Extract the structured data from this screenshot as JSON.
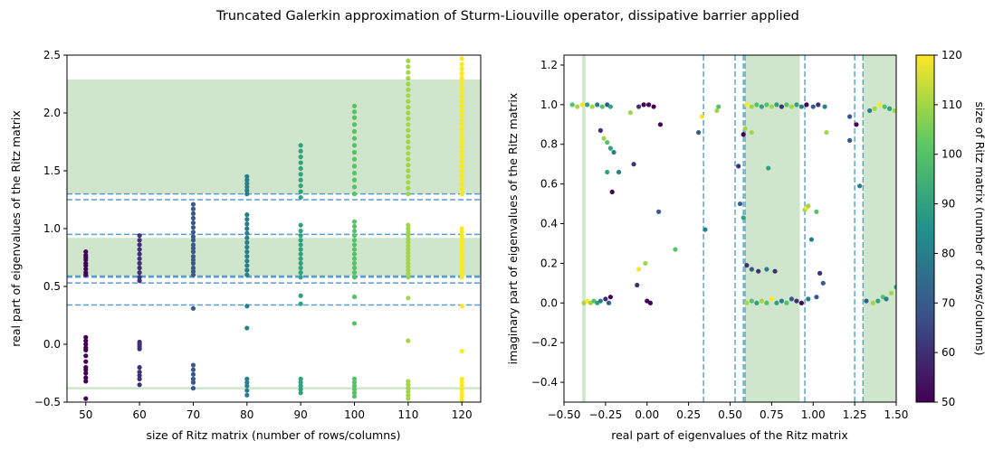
{
  "figure_title": "Truncated Galerkin approximation of Sturm-Liouville operator, dissipative barrier applied",
  "colors": {
    "band": "#cfe6cc",
    "dashed_left": "#5b9bd0",
    "dashed_right": "#5ba8c8",
    "colormap": [
      "#440154",
      "#3b528b",
      "#21918c",
      "#5ec962",
      "#fde725"
    ]
  },
  "chart_data": [
    {
      "type": "scatter",
      "xlabel": "size of Ritz matrix (number of rows/columns)",
      "ylabel": "real part of eigenvalues of the Ritz matrix",
      "xlim": [
        46.5,
        123.5
      ],
      "ylim": [
        -0.5,
        2.5
      ],
      "xticks": [
        50,
        60,
        70,
        80,
        90,
        100,
        110,
        120
      ],
      "yticks": [
        -0.5,
        0.0,
        0.5,
        1.0,
        1.5,
        2.0,
        2.5
      ],
      "xtick_labels": [
        "50",
        "60",
        "70",
        "80",
        "90",
        "100",
        "110",
        "120"
      ],
      "ytick_labels": [
        "−0.5",
        "0.0",
        "0.5",
        "1.0",
        "1.5",
        "2.0",
        "2.5"
      ],
      "shaded_bands_y": [
        [
          -0.39,
          -0.37
        ],
        [
          0.59,
          0.92
        ],
        [
          1.3,
          2.29
        ]
      ],
      "dashed_lines_y": [
        0.34,
        0.53,
        0.58,
        0.59,
        0.95,
        1.25,
        1.3
      ],
      "color_by": "size of Ritz matrix",
      "series": [
        {
          "x": 50,
          "values": [
            -0.47,
            -0.32,
            -0.29,
            -0.25,
            -0.22,
            -0.2,
            -0.15,
            -0.1,
            -0.05,
            -0.03,
            0.0,
            0.03,
            0.06,
            0.6,
            0.62,
            0.65,
            0.68,
            0.7,
            0.73,
            0.75,
            0.77,
            0.8
          ]
        },
        {
          "x": 60,
          "values": [
            -0.35,
            -0.3,
            -0.27,
            -0.24,
            -0.2,
            -0.04,
            -0.02,
            0.0,
            0.02,
            0.55,
            0.58,
            0.62,
            0.66,
            0.7,
            0.74,
            0.78,
            0.82,
            0.86,
            0.9,
            0.94
          ]
        },
        {
          "x": 70,
          "values": [
            -0.38,
            -0.33,
            -0.3,
            -0.26,
            -0.22,
            -0.18,
            0.31,
            0.6,
            0.63,
            0.66,
            0.7,
            0.73,
            0.76,
            0.8,
            0.83,
            0.86,
            0.9,
            0.93,
            0.97,
            1.01,
            1.05,
            1.09,
            1.13,
            1.17,
            1.21
          ]
        },
        {
          "x": 80,
          "values": [
            -0.44,
            -0.4,
            -0.36,
            -0.33,
            -0.3,
            0.14,
            0.33,
            0.6,
            0.64,
            0.68,
            0.72,
            0.76,
            0.8,
            0.84,
            0.88,
            0.92,
            0.96,
            1.0,
            1.04,
            1.08,
            1.12,
            1.3,
            1.33,
            1.36,
            1.39,
            1.42,
            1.45
          ]
        },
        {
          "x": 90,
          "values": [
            -0.42,
            -0.39,
            -0.36,
            -0.33,
            -0.3,
            0.35,
            0.42,
            0.58,
            0.62,
            0.66,
            0.7,
            0.74,
            0.78,
            0.82,
            0.86,
            0.9,
            0.94,
            0.98,
            1.03,
            1.27,
            1.32,
            1.37,
            1.42,
            1.47,
            1.52,
            1.57,
            1.62,
            1.67,
            1.72
          ]
        },
        {
          "x": 100,
          "values": [
            -0.45,
            -0.42,
            -0.39,
            -0.36,
            -0.33,
            -0.3,
            0.18,
            0.41,
            0.58,
            0.62,
            0.66,
            0.7,
            0.74,
            0.78,
            0.82,
            0.86,
            0.9,
            0.94,
            0.98,
            1.02,
            1.06,
            1.3,
            1.36,
            1.42,
            1.48,
            1.54,
            1.6,
            1.66,
            1.72,
            1.78,
            1.84,
            1.9,
            1.96,
            2.01,
            2.06
          ]
        },
        {
          "x": 110,
          "values": [
            -0.47,
            -0.44,
            -0.41,
            -0.38,
            -0.35,
            -0.32,
            0.03,
            0.4,
            0.58,
            0.61,
            0.64,
            0.67,
            0.7,
            0.73,
            0.76,
            0.79,
            0.82,
            0.85,
            0.88,
            0.91,
            0.94,
            0.97,
            1.0,
            1.03,
            1.3,
            1.35,
            1.4,
            1.45,
            1.5,
            1.55,
            1.6,
            1.65,
            1.7,
            1.75,
            1.8,
            1.85,
            1.9,
            1.95,
            2.0,
            2.05,
            2.1,
            2.15,
            2.2,
            2.25,
            2.3,
            2.35,
            2.4,
            2.45
          ]
        },
        {
          "x": 120,
          "values": [
            -0.48,
            -0.45,
            -0.42,
            -0.39,
            -0.36,
            -0.33,
            -0.3,
            -0.06,
            0.33,
            0.58,
            0.61,
            0.64,
            0.67,
            0.7,
            0.73,
            0.76,
            0.79,
            0.82,
            0.85,
            0.88,
            0.91,
            0.94,
            0.97,
            1.0,
            1.3,
            1.34,
            1.38,
            1.42,
            1.46,
            1.5,
            1.54,
            1.58,
            1.62,
            1.66,
            1.7,
            1.74,
            1.78,
            1.82,
            1.86,
            1.9,
            1.94,
            1.98,
            2.02,
            2.06,
            2.1,
            2.14,
            2.18,
            2.22,
            2.26,
            2.3,
            2.34,
            2.38,
            2.42,
            2.47
          ]
        }
      ]
    },
    {
      "type": "scatter",
      "xlabel": "real part of eigenvalues of the Ritz matrix",
      "ylabel": "imaginary part of eigenvalues of the Ritz matrix",
      "xlim": [
        -0.5,
        1.5
      ],
      "ylim": [
        -0.5,
        1.25
      ],
      "xticks": [
        -0.5,
        -0.25,
        0.0,
        0.25,
        0.5,
        0.75,
        1.0,
        1.25,
        1.5
      ],
      "yticks": [
        -0.4,
        -0.2,
        0.0,
        0.2,
        0.4,
        0.6,
        0.8,
        1.0,
        1.2
      ],
      "xtick_labels": [
        "−0.50",
        "−0.25",
        "0.00",
        "0.25",
        "0.50",
        "0.75",
        "1.00",
        "1.25",
        "1.50"
      ],
      "ytick_labels": [
        "−0.4",
        "−0.2",
        "0.0",
        "0.2",
        "0.4",
        "0.6",
        "0.8",
        "1.0",
        "1.2"
      ],
      "shaded_bands_x": [
        [
          -0.39,
          -0.37
        ],
        [
          0.59,
          0.92
        ],
        [
          1.3,
          1.5
        ]
      ],
      "dashed_lines_x": [
        0.34,
        0.53,
        0.58,
        0.59,
        0.95,
        1.25,
        1.3
      ],
      "points": [
        {
          "x": -0.45,
          "y": 1.0,
          "n": 100
        },
        {
          "x": -0.42,
          "y": 0.99,
          "n": 110
        },
        {
          "x": -0.39,
          "y": 1.0,
          "n": 120
        },
        {
          "x": -0.36,
          "y": 1.0,
          "n": 90
        },
        {
          "x": -0.33,
          "y": 0.99,
          "n": 110
        },
        {
          "x": -0.3,
          "y": 1.0,
          "n": 80
        },
        {
          "x": -0.27,
          "y": 0.99,
          "n": 100
        },
        {
          "x": -0.24,
          "y": 1.0,
          "n": 70
        },
        {
          "x": -0.22,
          "y": 0.99,
          "n": 90
        },
        {
          "x": -0.05,
          "y": 0.99,
          "n": 60
        },
        {
          "x": -0.02,
          "y": 1.0,
          "n": 50
        },
        {
          "x": 0.01,
          "y": 1.0,
          "n": 50
        },
        {
          "x": 0.04,
          "y": 0.99,
          "n": 50
        },
        {
          "x": -0.1,
          "y": 0.96,
          "n": 110
        },
        {
          "x": 0.08,
          "y": 0.9,
          "n": 50
        },
        {
          "x": -0.28,
          "y": 0.87,
          "n": 60
        },
        {
          "x": -0.26,
          "y": 0.83,
          "n": 110
        },
        {
          "x": -0.24,
          "y": 0.81,
          "n": 100
        },
        {
          "x": -0.22,
          "y": 0.78,
          "n": 90
        },
        {
          "x": -0.2,
          "y": 0.76,
          "n": 80
        },
        {
          "x": -0.17,
          "y": 0.66,
          "n": 80
        },
        {
          "x": -0.24,
          "y": 0.66,
          "n": 90
        },
        {
          "x": -0.08,
          "y": 0.7,
          "n": 60
        },
        {
          "x": -0.21,
          "y": 0.56,
          "n": 50
        },
        {
          "x": 0.07,
          "y": 0.46,
          "n": 70
        },
        {
          "x": 0.17,
          "y": 0.27,
          "n": 100
        },
        {
          "x": 0.31,
          "y": 0.86,
          "n": 70
        },
        {
          "x": 0.33,
          "y": 0.94,
          "n": 120
        },
        {
          "x": 0.35,
          "y": 0.37,
          "n": 80
        },
        {
          "x": -0.05,
          "y": 0.17,
          "n": 120
        },
        {
          "x": -0.01,
          "y": 0.2,
          "n": 110
        },
        {
          "x": 0.0,
          "y": 0.01,
          "n": 50
        },
        {
          "x": 0.02,
          "y": 0.0,
          "n": 50
        },
        {
          "x": -0.06,
          "y": 0.09,
          "n": 60
        },
        {
          "x": -0.38,
          "y": 0.0,
          "n": 110
        },
        {
          "x": -0.36,
          "y": 0.01,
          "n": 120
        },
        {
          "x": -0.34,
          "y": 0.0,
          "n": 110
        },
        {
          "x": -0.32,
          "y": 0.01,
          "n": 100
        },
        {
          "x": -0.3,
          "y": 0.0,
          "n": 90
        },
        {
          "x": -0.28,
          "y": 0.01,
          "n": 80
        },
        {
          "x": -0.25,
          "y": 0.02,
          "n": 60
        },
        {
          "x": -0.22,
          "y": 0.03,
          "n": 50
        },
        {
          "x": -0.23,
          "y": 0.0,
          "n": 70
        },
        {
          "x": 0.42,
          "y": 0.97,
          "n": 110
        },
        {
          "x": 0.43,
          "y": 0.99,
          "n": 100
        },
        {
          "x": 0.55,
          "y": 0.69,
          "n": 60
        },
        {
          "x": 0.56,
          "y": 0.5,
          "n": 70
        },
        {
          "x": 0.58,
          "y": 0.43,
          "n": 90
        },
        {
          "x": 0.58,
          "y": 0.85,
          "n": 50
        },
        {
          "x": 0.59,
          "y": 0.88,
          "n": 110
        },
        {
          "x": 0.6,
          "y": 0.19,
          "n": 60
        },
        {
          "x": 0.63,
          "y": 0.17,
          "n": 70
        },
        {
          "x": 0.67,
          "y": 0.16,
          "n": 60
        },
        {
          "x": 0.72,
          "y": 0.17,
          "n": 80
        },
        {
          "x": 0.77,
          "y": 0.16,
          "n": 60
        },
        {
          "x": 0.63,
          "y": 0.86,
          "n": 110
        },
        {
          "x": 0.73,
          "y": 0.68,
          "n": 90
        },
        {
          "x": 0.95,
          "y": 0.47,
          "n": 110
        },
        {
          "x": 0.96,
          "y": 0.48,
          "n": 120
        },
        {
          "x": 0.99,
          "y": 0.32,
          "n": 80
        },
        {
          "x": 0.97,
          "y": 0.49,
          "n": 110
        },
        {
          "x": 1.02,
          "y": 0.46,
          "n": 100
        },
        {
          "x": 1.04,
          "y": 0.15,
          "n": 60
        },
        {
          "x": 1.06,
          "y": 0.1,
          "n": 70
        },
        {
          "x": 1.08,
          "y": 0.86,
          "n": 110
        },
        {
          "x": 1.22,
          "y": 0.94,
          "n": 70
        },
        {
          "x": 1.22,
          "y": 0.82,
          "n": 70
        },
        {
          "x": 1.26,
          "y": 0.9,
          "n": 50
        },
        {
          "x": 1.28,
          "y": 0.59,
          "n": 80
        },
        {
          "x": 0.6,
          "y": 1.0,
          "n": 120
        },
        {
          "x": 0.63,
          "y": 0.99,
          "n": 110
        },
        {
          "x": 0.66,
          "y": 1.0,
          "n": 100
        },
        {
          "x": 0.69,
          "y": 0.99,
          "n": 90
        },
        {
          "x": 0.72,
          "y": 1.0,
          "n": 100
        },
        {
          "x": 0.75,
          "y": 0.99,
          "n": 110
        },
        {
          "x": 0.78,
          "y": 1.0,
          "n": 90
        },
        {
          "x": 0.81,
          "y": 0.99,
          "n": 60
        },
        {
          "x": 0.84,
          "y": 1.0,
          "n": 100
        },
        {
          "x": 0.87,
          "y": 0.99,
          "n": 110
        },
        {
          "x": 0.9,
          "y": 1.0,
          "n": 90
        },
        {
          "x": 0.93,
          "y": 0.99,
          "n": 80
        },
        {
          "x": 0.96,
          "y": 1.0,
          "n": 50
        },
        {
          "x": 1.0,
          "y": 0.99,
          "n": 70
        },
        {
          "x": 1.03,
          "y": 1.0,
          "n": 60
        },
        {
          "x": 1.07,
          "y": 0.99,
          "n": 80
        },
        {
          "x": 1.37,
          "y": 0.98,
          "n": 110
        },
        {
          "x": 1.4,
          "y": 1.0,
          "n": 120
        },
        {
          "x": 1.43,
          "y": 0.99,
          "n": 100
        },
        {
          "x": 1.46,
          "y": 0.98,
          "n": 90
        },
        {
          "x": 1.49,
          "y": 0.97,
          "n": 110
        },
        {
          "x": 1.34,
          "y": 0.97,
          "n": 80
        },
        {
          "x": 0.6,
          "y": 0.0,
          "n": 110
        },
        {
          "x": 0.63,
          "y": 0.01,
          "n": 100
        },
        {
          "x": 0.66,
          "y": 0.0,
          "n": 90
        },
        {
          "x": 0.69,
          "y": 0.01,
          "n": 110
        },
        {
          "x": 0.72,
          "y": 0.0,
          "n": 100
        },
        {
          "x": 0.75,
          "y": 0.02,
          "n": 120
        },
        {
          "x": 0.78,
          "y": 0.0,
          "n": 90
        },
        {
          "x": 0.81,
          "y": 0.01,
          "n": 80
        },
        {
          "x": 0.84,
          "y": 0.0,
          "n": 100
        },
        {
          "x": 0.87,
          "y": 0.02,
          "n": 70
        },
        {
          "x": 0.9,
          "y": 0.01,
          "n": 60
        },
        {
          "x": 0.93,
          "y": 0.0,
          "n": 50
        },
        {
          "x": 0.97,
          "y": 0.02,
          "n": 80
        },
        {
          "x": 1.02,
          "y": 0.03,
          "n": 70
        },
        {
          "x": 1.36,
          "y": 0.0,
          "n": 110
        },
        {
          "x": 1.39,
          "y": 0.01,
          "n": 90
        },
        {
          "x": 1.42,
          "y": 0.03,
          "n": 100
        },
        {
          "x": 1.44,
          "y": 0.02,
          "n": 80
        },
        {
          "x": 1.47,
          "y": 0.05,
          "n": 110
        },
        {
          "x": 1.5,
          "y": 0.08,
          "n": 90
        },
        {
          "x": 1.32,
          "y": 0.01,
          "n": 70
        }
      ]
    }
  ],
  "colorbar": {
    "label": "size of Ritz matrix (number of rows/columns)",
    "min": 50,
    "max": 120,
    "ticks": [
      50,
      60,
      70,
      80,
      90,
      100,
      110,
      120
    ],
    "tick_labels": [
      "50",
      "60",
      "70",
      "80",
      "90",
      "100",
      "110",
      "120"
    ]
  }
}
